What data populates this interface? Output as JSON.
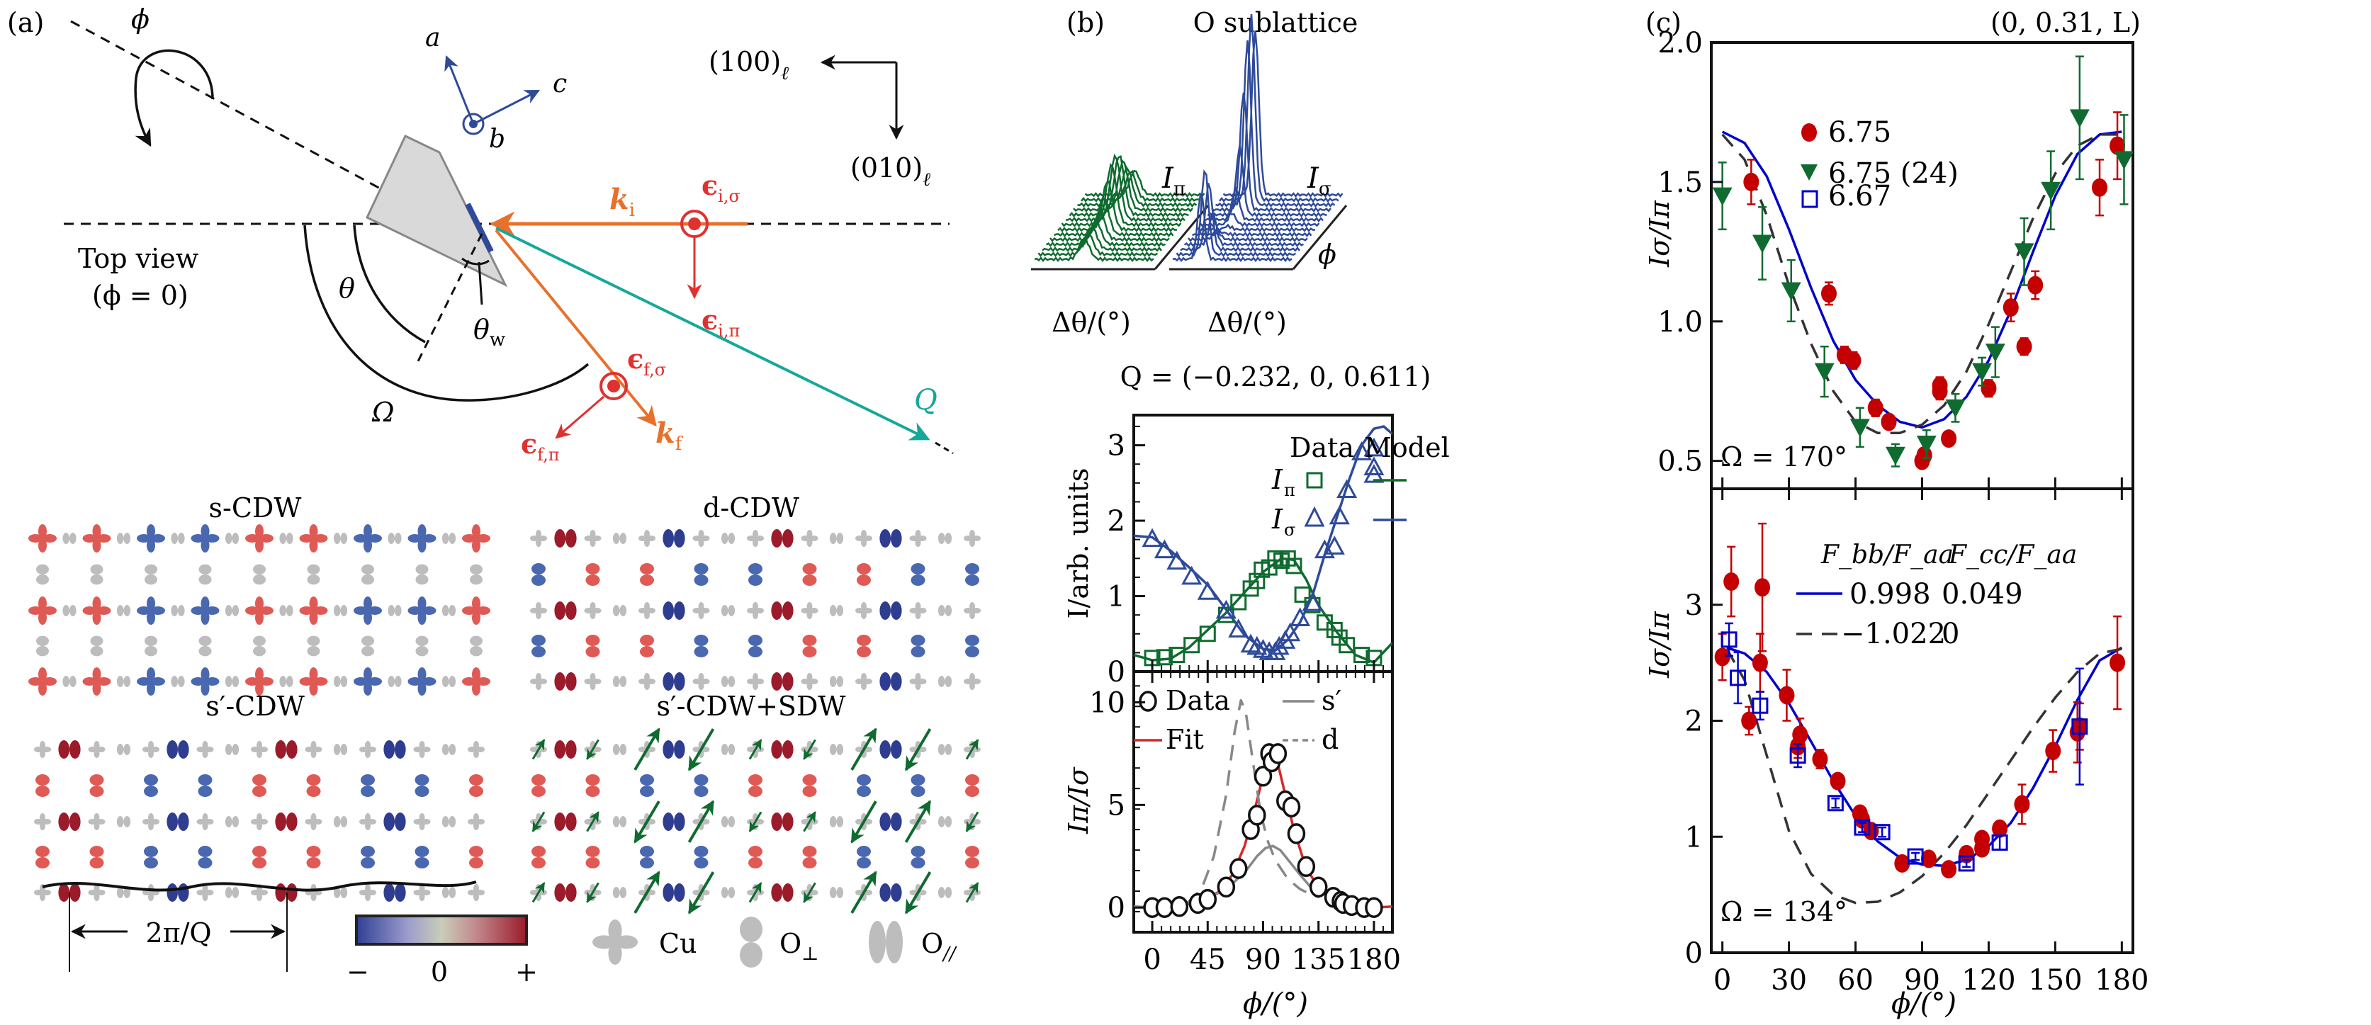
{
  "figure": {
    "panels": [
      "(a)",
      "(b)",
      "(c)"
    ]
  },
  "colors": {
    "green": "#0f6b2f",
    "blue_dark": "#2e4a9a",
    "blue": "#0000cc",
    "red": "#c40000",
    "red_fit": "#d62728",
    "orange": "#e8702a",
    "teal": "#14a89a",
    "gray": "#888888",
    "pol_red": "#e03030",
    "cdw_red": "#e05a55",
    "cdw_darkred": "#9b1b2a",
    "cdw_blue": "#4a68b0",
    "cdw_darkblue": "#2e3d8f",
    "orbital_gray": "#bdbdbd"
  },
  "panel_a": {
    "label": "(a)",
    "phi_label": "ϕ",
    "axes_crystal": {
      "a": "a",
      "b": "b",
      "c": "c"
    },
    "lab_axes": {
      "x": "(100)",
      "y": "(010)",
      "subscript": "ℓ"
    },
    "top_view": "Top view",
    "top_view_cond": "(ϕ = 0)",
    "theta": "θ",
    "theta_w": "θ",
    "theta_w_sub": "w",
    "omega": "Ω",
    "k_i": "k",
    "k_i_sub": "i",
    "k_f": "k",
    "k_f_sub": "f",
    "eps_i_sigma": "ϵ",
    "eps_i_sigma_sub": "i,σ",
    "eps_i_pi": "ϵ",
    "eps_i_pi_sub": "i,π",
    "eps_f_sigma": "ϵ",
    "eps_f_sigma_sub": "f,σ",
    "eps_f_pi": "ϵ",
    "eps_f_pi_sub": "f,π",
    "Q": "Q",
    "cdw_titles": {
      "s": "s-CDW",
      "d": "d-CDW",
      "sp": "s′-CDW",
      "sp_sdw": "s′-CDW+SDW"
    },
    "wavelength_label": "2π/Q",
    "colorbar": {
      "minus": "−",
      "zero": "0",
      "plus": "+"
    },
    "legend": {
      "cu": "Cu",
      "o_perp": "O",
      "o_perp_sub": "⊥",
      "o_par": "O",
      "o_par_sub": "//"
    }
  },
  "panel_b": {
    "label": "(b)",
    "title": "O sublattice",
    "waterfall": {
      "left_label": "I",
      "left_sub": "π",
      "right_label": "I",
      "right_sub": "σ",
      "xlabel": "Δθ/(°)",
      "phi_axis": "ϕ"
    },
    "q_label": "Q = (−0.232, 0, 0.611)"
  },
  "panel_c": {
    "label": "(c)",
    "title": "(0, 0.31, L)"
  },
  "chart_data": [
    {
      "id": "b-top",
      "type": "scatter",
      "title": "Q = (−0.232, 0, 0.611)",
      "xlabel": "ϕ/(°)",
      "ylabel": "I/arb. units",
      "xlim": [
        -15,
        195
      ],
      "ylim": [
        0,
        3.4
      ],
      "yticks": [
        0,
        1,
        2,
        3
      ],
      "xticks": [
        0,
        45,
        90,
        135,
        180
      ],
      "legend": {
        "header_data": "Data",
        "header_model": "Model",
        "position": "top-center"
      },
      "series": [
        {
          "name": "I_π",
          "sub": "π",
          "marker": "open-square",
          "color": "#0f6b2f",
          "x": [
            0,
            10,
            20,
            32,
            45,
            60,
            70,
            80,
            85,
            89,
            95,
            100,
            105,
            110,
            115,
            122,
            130,
            140,
            148,
            152,
            158,
            170,
            180
          ],
          "y": [
            0.18,
            0.19,
            0.22,
            0.35,
            0.5,
            0.75,
            0.92,
            1.1,
            1.2,
            1.35,
            1.38,
            1.5,
            1.47,
            1.5,
            1.4,
            1.02,
            0.88,
            0.65,
            0.55,
            0.45,
            0.35,
            0.22,
            0.18
          ],
          "model_x": [
            -15,
            0,
            15,
            30,
            45,
            60,
            75,
            90,
            105,
            115,
            125,
            135,
            150,
            165,
            180,
            195
          ],
          "model_y": [
            0.22,
            0.15,
            0.17,
            0.32,
            0.55,
            0.78,
            1.05,
            1.32,
            1.5,
            1.48,
            1.22,
            0.88,
            0.52,
            0.22,
            0.12,
            0.38
          ]
        },
        {
          "name": "I_σ",
          "sub": "σ",
          "marker": "open-triangle",
          "color": "#2e4a9a",
          "x": [
            0,
            10,
            20,
            32,
            45,
            60,
            70,
            80,
            85,
            90,
            95,
            100,
            103,
            108,
            112,
            120,
            130,
            140,
            148,
            152,
            158,
            170,
            180,
            180,
            180
          ],
          "y": [
            1.75,
            1.6,
            1.45,
            1.25,
            1.05,
            0.8,
            0.55,
            0.35,
            0.32,
            0.28,
            0.25,
            0.25,
            0.32,
            0.4,
            0.5,
            0.7,
            0.9,
            1.6,
            1.65,
            2.05,
            2.4,
            2.9,
            2.95,
            2.7,
            2.6
          ],
          "model_x": [
            -15,
            0,
            15,
            30,
            45,
            60,
            75,
            90,
            100,
            110,
            120,
            130,
            140,
            150,
            160,
            170,
            180,
            188,
            195
          ],
          "model_y": [
            1.8,
            1.78,
            1.6,
            1.38,
            1.15,
            0.82,
            0.48,
            0.3,
            0.28,
            0.42,
            0.65,
            1.0,
            1.55,
            2.05,
            2.55,
            3.0,
            3.22,
            3.25,
            3.15
          ]
        }
      ]
    },
    {
      "id": "b-bottom",
      "type": "scatter",
      "xlabel": "ϕ/(°)",
      "ylabel": "I_π/I_σ",
      "xlim": [
        -15,
        195
      ],
      "ylim": [
        -1.2,
        11.5
      ],
      "yticks": [
        0,
        5,
        10
      ],
      "xticks": [
        0,
        45,
        90,
        135,
        180
      ],
      "legend": {
        "entries": [
          "Data",
          "Fit",
          "s′",
          "d"
        ],
        "position": "top"
      },
      "series": [
        {
          "name": "Data",
          "marker": "open-circle",
          "color": "#111111",
          "x": [
            0,
            10,
            22,
            37,
            45,
            60,
            70,
            80,
            85,
            90,
            95,
            97,
            102,
            108,
            113,
            117,
            125,
            135,
            147,
            153,
            155,
            162,
            172,
            180
          ],
          "y": [
            0,
            0,
            0.05,
            0.2,
            0.4,
            1.0,
            1.9,
            3.8,
            4.5,
            6.4,
            7.5,
            7.1,
            7.5,
            5.2,
            4.9,
            3.6,
            2.0,
            1.0,
            0.5,
            0.3,
            0.2,
            0.1,
            0,
            0
          ]
        },
        {
          "name": "Fit",
          "line": "solid",
          "color": "#d62728",
          "x": [
            -15,
            0,
            20,
            40,
            55,
            65,
            75,
            85,
            92,
            98,
            102,
            108,
            115,
            125,
            135,
            145,
            160,
            180,
            195
          ],
          "y": [
            0.05,
            0,
            0.05,
            0.3,
            0.8,
            1.6,
            3.0,
            5.2,
            6.9,
            7.4,
            7.0,
            5.5,
            3.8,
            1.9,
            1.0,
            0.5,
            0.15,
            0,
            0.05
          ]
        },
        {
          "name": "s′",
          "line": "solid",
          "color": "#888888",
          "x": [
            -15,
            0,
            20,
            40,
            60,
            75,
            85,
            92,
            98,
            104,
            112,
            120,
            130,
            138
          ],
          "y": [
            0.05,
            0,
            0.05,
            0.3,
            0.9,
            1.7,
            2.5,
            2.9,
            3.0,
            2.8,
            2.2,
            1.6,
            0.9,
            0.6
          ]
        },
        {
          "name": "d",
          "line": "dashed",
          "color": "#888888",
          "x": [
            28,
            40,
            50,
            60,
            67,
            72,
            76,
            82,
            88,
            94,
            100,
            110,
            120,
            130,
            136
          ],
          "y": [
            0.2,
            0.9,
            2.5,
            5.5,
            8.6,
            10.1,
            9.5,
            7.0,
            4.6,
            3.2,
            2.3,
            1.4,
            0.9,
            0.6,
            0.5
          ]
        }
      ]
    },
    {
      "id": "c-top",
      "type": "scatter",
      "title": "(0, 0.31, L)",
      "xlabel": "ϕ/(°)",
      "ylabel": "I_σ/I_π",
      "xlim": [
        -5,
        185
      ],
      "ylim": [
        0.4,
        2.0
      ],
      "yticks": [
        0.5,
        1.0,
        1.5,
        2.0
      ],
      "ytick_labels": [
        "0.5",
        "1.0",
        "1.5",
        "2.0"
      ],
      "xticks": [
        0,
        30,
        60,
        90,
        120,
        150,
        180
      ],
      "annotation": "Ω = 170°",
      "legend": {
        "entries": [
          "6.75",
          "6.75 (24)",
          "6.67"
        ],
        "position": "top-center"
      },
      "series": [
        {
          "name": "6.75",
          "marker": "filled-circle",
          "color": "#c40000",
          "x": [
            13,
            48,
            55,
            59,
            69,
            75,
            90,
            91,
            98,
            98,
            102,
            120,
            130,
            136,
            141,
            170,
            178
          ],
          "y": [
            1.5,
            1.1,
            0.88,
            0.86,
            0.69,
            0.64,
            0.5,
            0.52,
            0.77,
            0.75,
            0.58,
            0.76,
            1.05,
            0.91,
            1.13,
            1.48,
            1.63
          ],
          "err": [
            0.08,
            0.04,
            0.03,
            0.03,
            0.03,
            0.02,
            0.02,
            0.02,
            0.03,
            0.03,
            0.02,
            0.03,
            0.05,
            0.03,
            0.05,
            0.1,
            0.12
          ]
        },
        {
          "name": "6.75 (24)",
          "marker": "filled-down-triangle",
          "color": "#0f6b2f",
          "x": [
            0,
            18,
            31,
            46,
            62,
            78,
            92,
            105,
            117,
            123,
            136,
            148,
            161,
            181
          ],
          "y": [
            1.45,
            1.28,
            1.11,
            0.82,
            0.62,
            0.52,
            0.56,
            0.69,
            0.82,
            0.89,
            1.25,
            1.47,
            1.73,
            1.58
          ],
          "err": [
            0.12,
            0.13,
            0.11,
            0.09,
            0.07,
            0.04,
            0.05,
            0.05,
            0.05,
            0.09,
            0.12,
            0.14,
            0.22,
            0.16
          ]
        }
      ],
      "curves": [
        {
          "name": "model-solid",
          "line": "solid",
          "color": "#0000cc",
          "x": [
            0,
            10,
            20,
            30,
            40,
            50,
            60,
            70,
            80,
            90,
            100,
            110,
            120,
            130,
            140,
            150,
            160,
            170,
            180
          ],
          "y": [
            1.68,
            1.64,
            1.52,
            1.33,
            1.12,
            0.93,
            0.79,
            0.7,
            0.64,
            0.62,
            0.65,
            0.73,
            0.86,
            1.04,
            1.25,
            1.45,
            1.6,
            1.67,
            1.68
          ]
        },
        {
          "name": "model-dashed",
          "line": "dashed",
          "color": "#333333",
          "x": [
            0,
            10,
            20,
            30,
            40,
            50,
            60,
            70,
            80,
            90,
            100,
            110,
            120,
            130,
            140,
            150,
            160,
            170,
            180
          ],
          "y": [
            1.67,
            1.58,
            1.38,
            1.13,
            0.92,
            0.75,
            0.64,
            0.6,
            0.6,
            0.63,
            0.7,
            0.82,
            0.99,
            1.18,
            1.37,
            1.53,
            1.63,
            1.67,
            1.67
          ]
        }
      ]
    },
    {
      "id": "c-bottom",
      "type": "scatter",
      "xlabel": "ϕ/(°)",
      "ylabel": "I_σ/I_π",
      "xlim": [
        -5,
        185
      ],
      "ylim": [
        0,
        4.0
      ],
      "yticks": [
        0,
        1,
        2,
        3
      ],
      "xticks": [
        0,
        30,
        60,
        90,
        120,
        150,
        180
      ],
      "xtick_labels": [
        "0",
        "30",
        "60",
        "90",
        "120",
        "150",
        "180"
      ],
      "annotation": "Ω = 134°",
      "legend": {
        "header_1": "F_bb/F_aa",
        "header_2": "F_cc/F_aa",
        "rows": [
          [
            "0.998",
            "0.049"
          ],
          [
            "−1.022",
            "0"
          ]
        ],
        "position": "top-right"
      },
      "series": [
        {
          "name": "6.75",
          "marker": "filled-circle",
          "color": "#c40000",
          "x": [
            0,
            4,
            12,
            17,
            18,
            29,
            34,
            35,
            44,
            52,
            62,
            63,
            67,
            81,
            93,
            102,
            110,
            117,
            117,
            125,
            135,
            149,
            160,
            161,
            178
          ],
          "y": [
            2.55,
            3.2,
            2.0,
            2.5,
            3.15,
            2.22,
            1.78,
            1.88,
            1.67,
            1.48,
            1.2,
            1.15,
            1.05,
            0.77,
            0.81,
            0.72,
            0.85,
            0.98,
            0.9,
            1.07,
            1.28,
            1.74,
            1.9,
            1.95,
            2.5
          ],
          "err": [
            0.2,
            0.3,
            0.12,
            0.25,
            0.55,
            0.22,
            0.1,
            0.14,
            0.08,
            0.06,
            0.05,
            0.05,
            0.04,
            0.03,
            0.03,
            0.03,
            0.04,
            0.06,
            0.05,
            0.05,
            0.17,
            0.18,
            0.26,
            0.2,
            0.4
          ]
        },
        {
          "name": "6.67",
          "marker": "open-square",
          "color": "#0000cc",
          "x": [
            3,
            7,
            17,
            34,
            51,
            63,
            72,
            87,
            110,
            125,
            161
          ],
          "y": [
            2.7,
            2.37,
            2.13,
            1.7,
            1.29,
            1.08,
            1.04,
            0.83,
            0.77,
            0.95,
            1.95
          ],
          "err": [
            0.14,
            0.22,
            0.12,
            0.1,
            0.04,
            0.04,
            0.04,
            0.03,
            0.03,
            0.06,
            0.5
          ]
        }
      ],
      "curves": [
        {
          "name": "0.998 / 0.049",
          "line": "solid",
          "color": "#0000cc",
          "x": [
            2,
            10,
            20,
            30,
            40,
            50,
            60,
            70,
            80,
            90,
            100,
            110,
            120,
            130,
            140,
            150,
            160,
            170,
            180
          ],
          "y": [
            2.63,
            2.58,
            2.42,
            2.15,
            1.82,
            1.48,
            1.18,
            0.96,
            0.82,
            0.76,
            0.75,
            0.8,
            0.92,
            1.12,
            1.42,
            1.78,
            2.18,
            2.52,
            2.63
          ]
        },
        {
          "name": "−1.022 / 0",
          "line": "dashed",
          "color": "#333333",
          "x": [
            2,
            10,
            20,
            30,
            40,
            50,
            60,
            70,
            80,
            90,
            100,
            110,
            120,
            130,
            140,
            150,
            160,
            170,
            180
          ],
          "y": [
            2.62,
            2.35,
            1.7,
            1.05,
            0.68,
            0.5,
            0.43,
            0.44,
            0.52,
            0.66,
            0.86,
            1.1,
            1.38,
            1.66,
            1.94,
            2.2,
            2.42,
            2.58,
            2.62
          ]
        }
      ]
    }
  ]
}
